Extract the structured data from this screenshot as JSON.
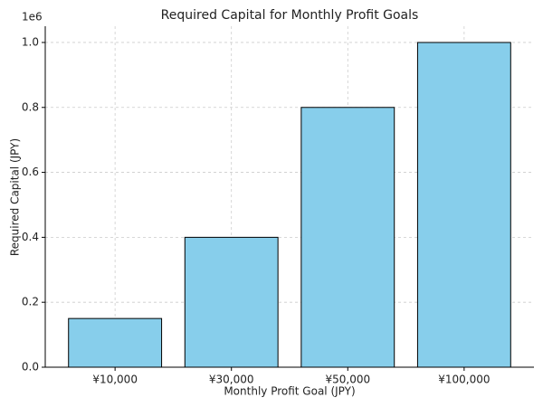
{
  "chart_data": {
    "type": "bar",
    "title": "Required Capital for Monthly Profit Goals",
    "x_label": "Monthly Profit Goal (JPY)",
    "y_label": "Required Capital (JPY)",
    "y_offset_label": "1e6",
    "categories": [
      "¥10,000",
      "¥30,000",
      "¥50,000",
      "¥100,000"
    ],
    "values": [
      150000,
      400000,
      800000,
      1000000
    ],
    "color": "#87ceeb",
    "edge_color": "#000000",
    "ylim": [
      0,
      1050000
    ],
    "yticks": [
      {
        "value": 0,
        "label": "0.0"
      },
      {
        "value": 200000,
        "label": "0.2"
      },
      {
        "value": 400000,
        "label": "0.4"
      },
      {
        "value": 600000,
        "label": "0.6"
      },
      {
        "value": 800000,
        "label": "0.8"
      },
      {
        "value": 1000000,
        "label": "1.0"
      }
    ],
    "grid": true
  }
}
